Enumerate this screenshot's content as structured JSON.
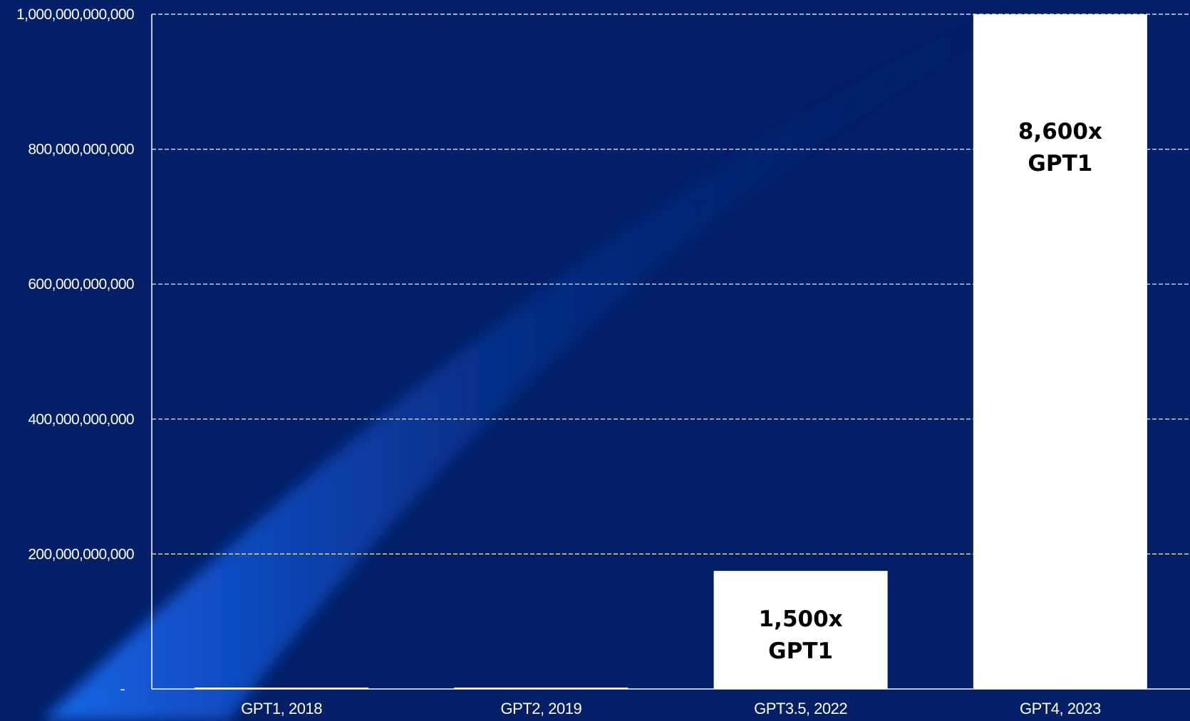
{
  "chart_data": {
    "type": "bar",
    "title": "",
    "xlabel": "",
    "ylabel": "",
    "categories": [
      "GPT1, 2018",
      "GPT2, 2019",
      "GPT3.5, 2022",
      "GPT4, 2023"
    ],
    "values": [
      117000000,
      1500000000,
      175000000000,
      1000000000000
    ],
    "ylim": [
      0,
      1000000000000
    ],
    "yticks": [
      {
        "value": 0,
        "label": "-"
      },
      {
        "value": 200000000000,
        "label": "200,000,000,000"
      },
      {
        "value": 400000000000,
        "label": "400,000,000,000"
      },
      {
        "value": 600000000000,
        "label": "600,000,000,000"
      },
      {
        "value": 800000000000,
        "label": "800,000,000,000"
      },
      {
        "value": 1000000000000,
        "label": "1,000,000,000,000"
      }
    ],
    "grid": true,
    "grid_style": "dashed",
    "legend": "none",
    "bar_labels": [
      {
        "category": "GPT3.5, 2022",
        "lines": [
          "1,500x",
          "GPT1"
        ],
        "position": "inside-bottom"
      },
      {
        "category": "GPT4, 2023",
        "lines": [
          "8,600x",
          "GPT1"
        ],
        "position": "inside-top"
      }
    ],
    "colors": {
      "background": "#021f68",
      "beam": "#1a6cf0",
      "bar": "#ffffff",
      "axis": "#ffffff",
      "text": "#ffffff",
      "bar_label_text": "#000000"
    }
  }
}
